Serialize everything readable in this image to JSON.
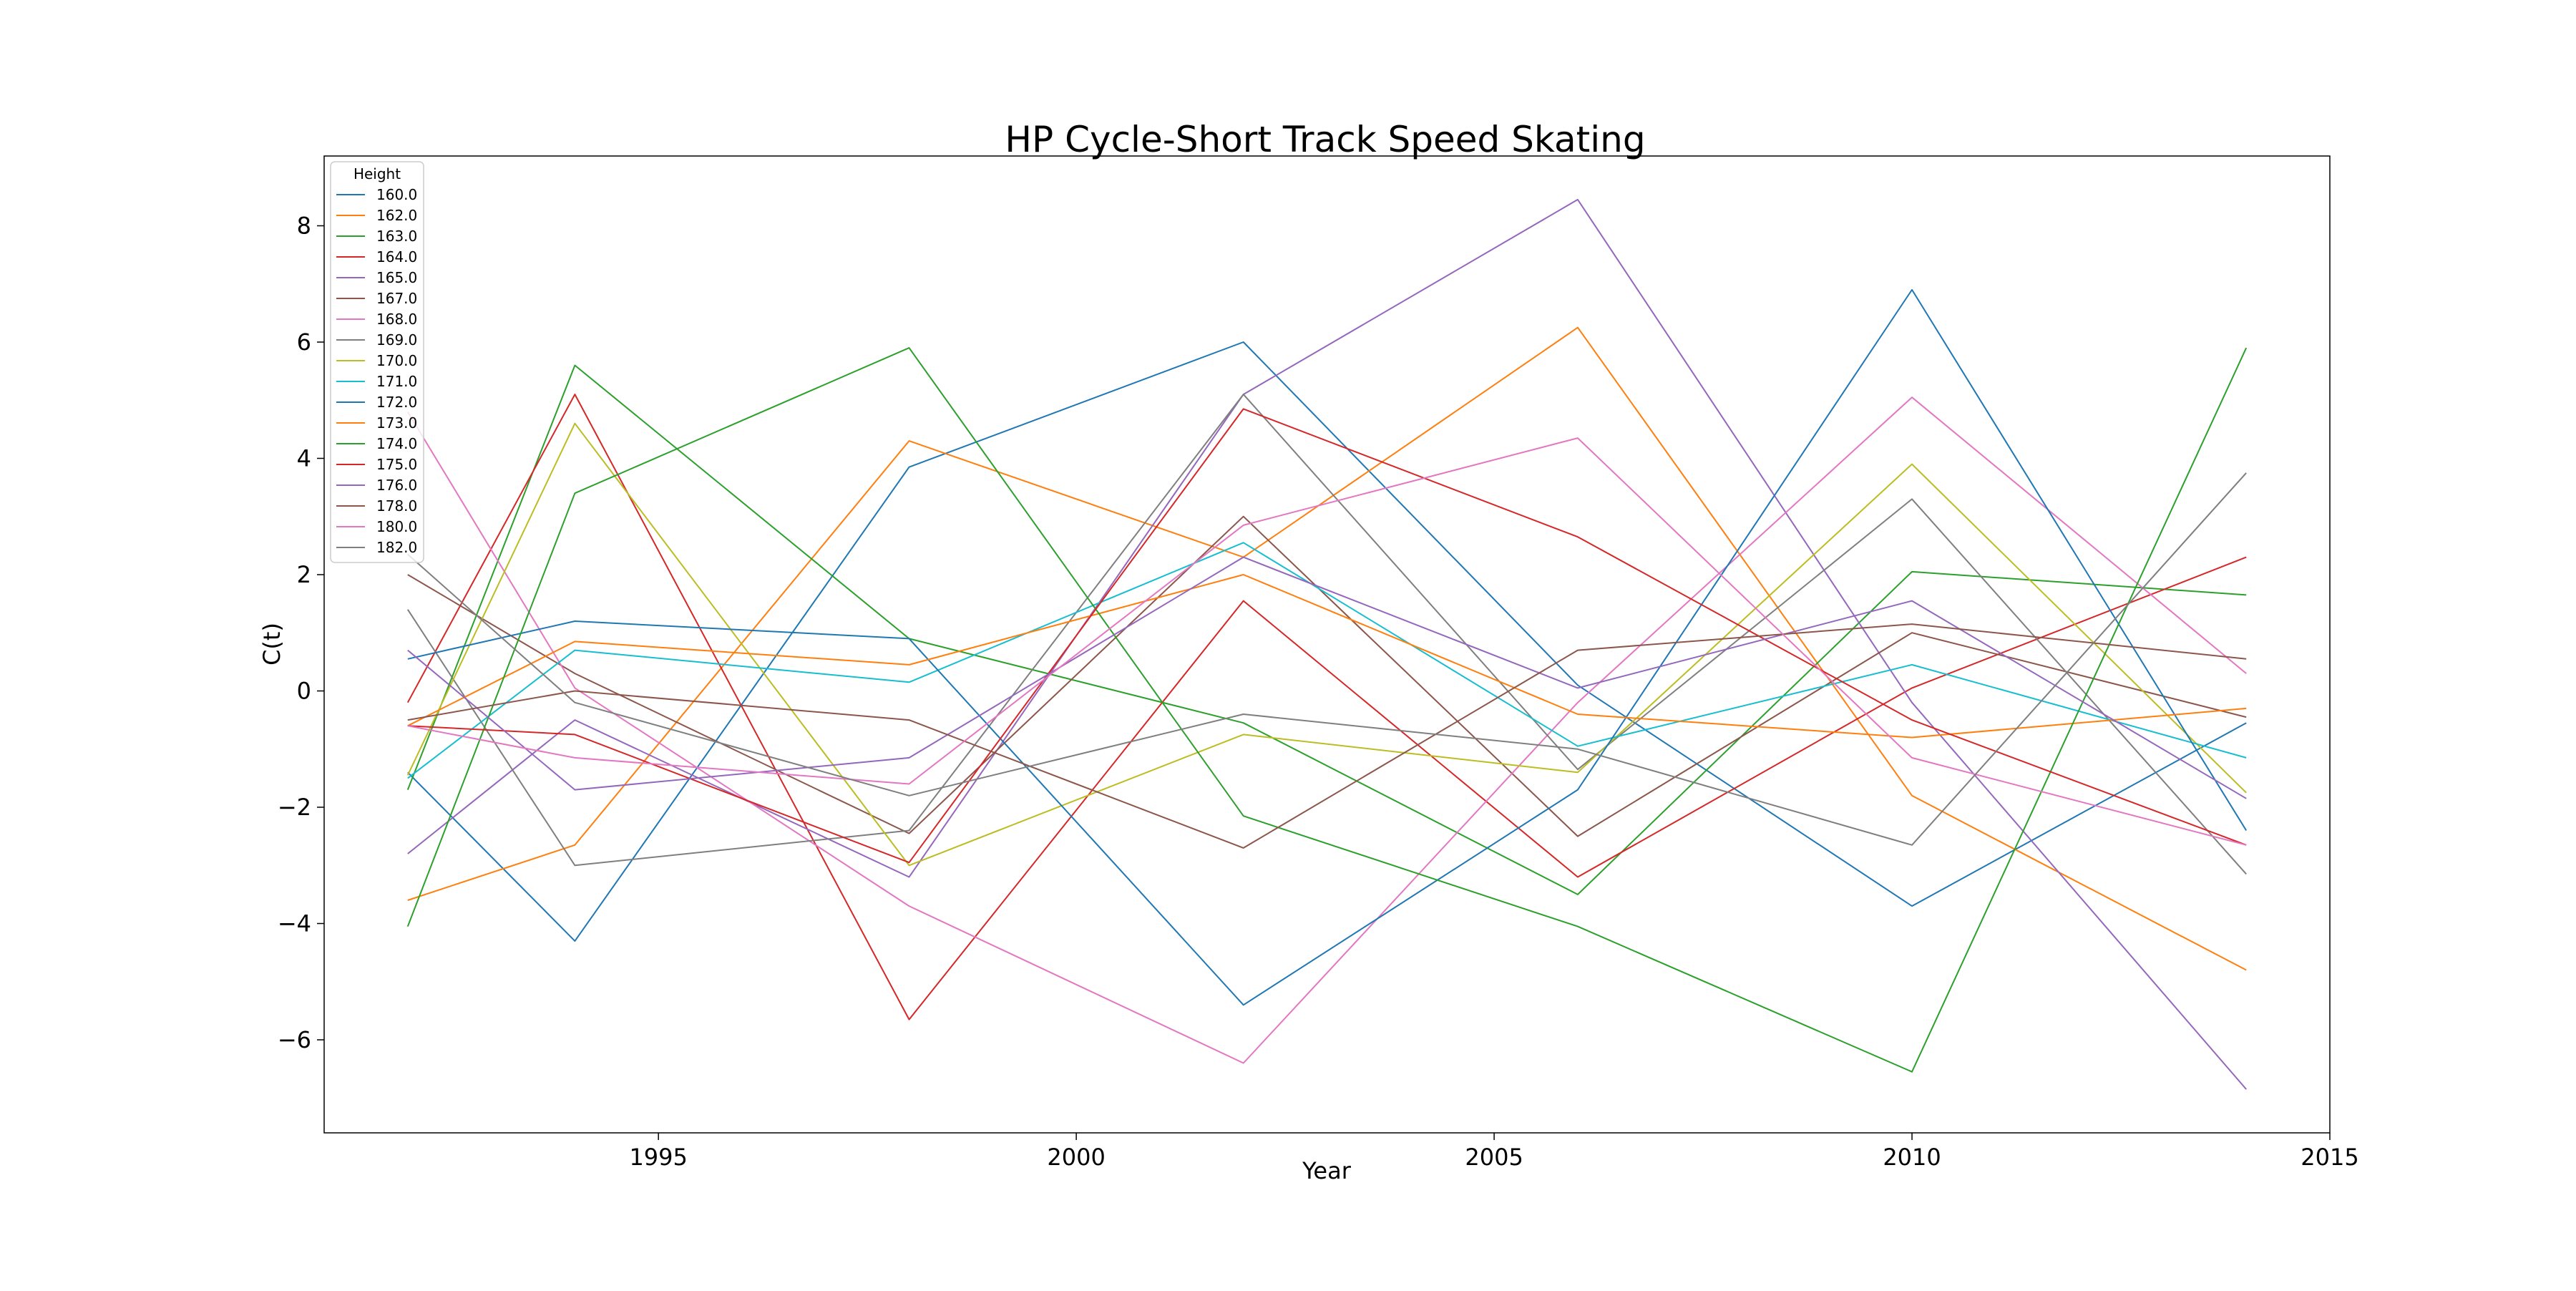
{
  "chart_data": {
    "type": "line",
    "title": "HP Cycle-Short Track Speed Skating",
    "xlabel": "Year",
    "ylabel": "C(t)",
    "xlim": [
      1991,
      2015
    ],
    "ylim": [
      -7.6,
      9.2
    ],
    "x": [
      1992,
      1994,
      1998,
      2002,
      2006,
      2010,
      2014
    ],
    "xticks": [
      1995,
      2000,
      2005,
      2010,
      2015
    ],
    "yticks": [
      -6,
      -4,
      -2,
      0,
      2,
      4,
      6,
      8
    ],
    "grid": false,
    "legend": {
      "title": "Height",
      "position": "top-left"
    },
    "series": [
      {
        "name": "160.0",
        "color": "#1f77b4",
        "values": [
          -1.4,
          -4.3,
          3.85,
          6.0,
          0.1,
          -3.7,
          -0.55
        ]
      },
      {
        "name": "162.0",
        "color": "#ff7f0e",
        "values": [
          -3.6,
          -2.65,
          4.3,
          2.3,
          6.25,
          -1.8,
          -4.8
        ]
      },
      {
        "name": "163.0",
        "color": "#2ca02c",
        "values": [
          -1.7,
          5.6,
          0.9,
          -0.55,
          -3.5,
          2.05,
          1.65
        ]
      },
      {
        "name": "164.0",
        "color": "#d62728",
        "values": [
          -0.2,
          5.1,
          -5.65,
          1.55,
          -3.2,
          0.05,
          2.3
        ]
      },
      {
        "name": "165.0",
        "color": "#9467bd",
        "values": [
          -2.8,
          -0.5,
          -3.2,
          5.1,
          8.45,
          -0.2,
          -6.85
        ]
      },
      {
        "name": "167.0",
        "color": "#8c564b",
        "values": [
          2.0,
          0.3,
          -2.45,
          3.0,
          -2.5,
          1.0,
          -0.45
        ]
      },
      {
        "name": "168.0",
        "color": "#e377c2",
        "values": [
          4.8,
          0.05,
          -3.7,
          -6.4,
          -0.2,
          5.05,
          0.3
        ]
      },
      {
        "name": "169.0",
        "color": "#7f7f7f",
        "values": [
          1.4,
          -3.0,
          -2.4,
          5.1,
          -1.35,
          3.3,
          -3.15
        ]
      },
      {
        "name": "170.0",
        "color": "#bcbd22",
        "values": [
          -1.45,
          4.6,
          -3.0,
          -0.75,
          -1.4,
          3.9,
          -1.75
        ]
      },
      {
        "name": "171.0",
        "color": "#17becf",
        "values": [
          -1.5,
          0.7,
          0.15,
          2.55,
          -0.95,
          0.45,
          -1.15
        ]
      },
      {
        "name": "172.0",
        "color": "#1f77b4",
        "values": [
          0.55,
          1.2,
          0.9,
          -5.4,
          -1.7,
          6.9,
          -2.4
        ]
      },
      {
        "name": "173.0",
        "color": "#ff7f0e",
        "values": [
          -0.6,
          0.85,
          0.45,
          2.0,
          -0.4,
          -0.8,
          -0.3
        ]
      },
      {
        "name": "174.0",
        "color": "#2ca02c",
        "values": [
          -4.05,
          3.4,
          5.9,
          -2.15,
          -4.05,
          -6.55,
          5.9
        ]
      },
      {
        "name": "175.0",
        "color": "#d62728",
        "values": [
          -0.6,
          -0.75,
          -2.95,
          4.85,
          2.65,
          -0.5,
          -2.65
        ]
      },
      {
        "name": "176.0",
        "color": "#9467bd",
        "values": [
          0.7,
          -1.7,
          -1.15,
          2.3,
          0.05,
          1.55,
          -1.85
        ]
      },
      {
        "name": "178.0",
        "color": "#8c564b",
        "values": [
          -0.5,
          0.0,
          -0.5,
          -2.7,
          0.7,
          1.15,
          0.55
        ]
      },
      {
        "name": "180.0",
        "color": "#e377c2",
        "values": [
          -0.6,
          -1.15,
          -1.6,
          2.85,
          4.35,
          -1.15,
          -2.65
        ]
      },
      {
        "name": "182.0",
        "color": "#7f7f7f",
        "values": [
          2.35,
          -0.2,
          -1.8,
          -0.4,
          -1.0,
          -2.65,
          3.75
        ]
      }
    ]
  }
}
